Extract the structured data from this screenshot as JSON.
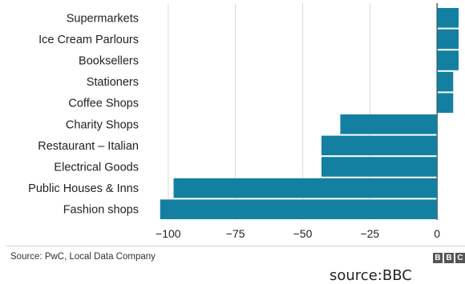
{
  "chart_data": {
    "type": "bar",
    "orientation": "horizontal",
    "categories": [
      "Supermarkets",
      "Ice Cream Parlours",
      "Booksellers",
      "Stationers",
      "Coffee Shops",
      "Charity Shops",
      "Restaurant – Italian",
      "Electrical Goods",
      "Public Houses & Inns",
      "Fashion shops"
    ],
    "values": [
      8,
      8,
      8,
      6,
      6,
      -36,
      -43,
      -43,
      -98,
      -103
    ],
    "xlim": [
      -108,
      8
    ],
    "xticks": [
      -100,
      -75,
      -50,
      -25,
      0
    ],
    "xtick_labels": [
      "−100",
      "−75",
      "−50",
      "−25",
      "0"
    ],
    "grid": "vertical",
    "bar_color": "#1380A1",
    "title": "",
    "xlabel": "",
    "ylabel": ""
  },
  "footer": {
    "source_note": "Source: PwC, Local Data Company",
    "logo_letters": [
      "B",
      "B",
      "C"
    ]
  },
  "credit": "source:BBC"
}
